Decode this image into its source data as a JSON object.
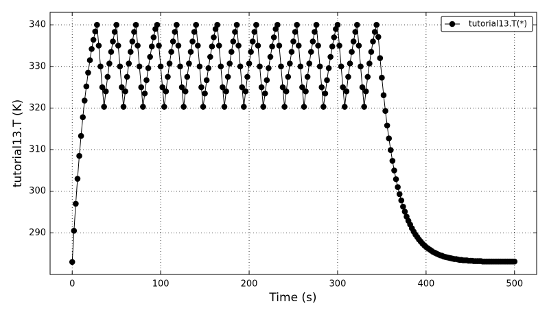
{
  "chart_data": {
    "type": "line",
    "xlabel": "Time (s)",
    "ylabel": "tutorial13.T (K)",
    "xlim": [
      -25,
      525
    ],
    "ylim": [
      280,
      343
    ],
    "xticks": [
      0,
      100,
      200,
      300,
      400,
      500
    ],
    "yticks": [
      290,
      300,
      310,
      320,
      330,
      340
    ],
    "grid": true,
    "legend": "upper right",
    "x": [
      0,
      2,
      4,
      6,
      8,
      10,
      12,
      14,
      16,
      18,
      20,
      22,
      24,
      26,
      28,
      30,
      32,
      34,
      36,
      38,
      40,
      42,
      44,
      46,
      48,
      50,
      52,
      54,
      56,
      58,
      60,
      62,
      64,
      66,
      68,
      70,
      72,
      74,
      76,
      78,
      80,
      82,
      84,
      86,
      88,
      90,
      92,
      94,
      96,
      98,
      100,
      102,
      104,
      106,
      108,
      110,
      112,
      114,
      116,
      118,
      120,
      122,
      124,
      126,
      128,
      130,
      132,
      134,
      136,
      138,
      140,
      142,
      144,
      146,
      148,
      150,
      152,
      154,
      156,
      158,
      160,
      162,
      164,
      166,
      168,
      170,
      172,
      174,
      176,
      178,
      180,
      182,
      184,
      186,
      188,
      190,
      192,
      194,
      196,
      198,
      200,
      202,
      204,
      206,
      208,
      210,
      212,
      214,
      216,
      218,
      220,
      222,
      224,
      226,
      228,
      230,
      232,
      234,
      236,
      238,
      240,
      242,
      244,
      246,
      248,
      250,
      252,
      254,
      256,
      258,
      260,
      262,
      264,
      266,
      268,
      270,
      272,
      274,
      276,
      278,
      280,
      282,
      284,
      286,
      288,
      290,
      292,
      294,
      296,
      298,
      300,
      302,
      304,
      306,
      308,
      310,
      312,
      314,
      316,
      318,
      320,
      322,
      324,
      326,
      328,
      330,
      332,
      334,
      336,
      338,
      340,
      342,
      344,
      346,
      348,
      350,
      352,
      354,
      356,
      358,
      360,
      362,
      364,
      366,
      368,
      370,
      372,
      374,
      376,
      378,
      380,
      382,
      384,
      386,
      388,
      390,
      392,
      394,
      396,
      398,
      400,
      402,
      404,
      406,
      408,
      410,
      412,
      414,
      416,
      418,
      420,
      422,
      424,
      426,
      428,
      430,
      432,
      434,
      436,
      438,
      440,
      442,
      444,
      446,
      448,
      450,
      452,
      454,
      456,
      458,
      460,
      462,
      464,
      466,
      468,
      470,
      472,
      474,
      476,
      478,
      480,
      482,
      484,
      486,
      488,
      490,
      492,
      494,
      496,
      498,
      500
    ],
    "series": [
      {
        "name": "tutorial13.T(*)",
        "color": "#000000",
        "values": [
          283,
          290.5,
          297,
          303,
          308.5,
          313.3,
          317.8,
          321.8,
          325.2,
          328.5,
          331.5,
          334.2,
          336.4,
          338.4,
          340,
          335,
          330,
          325,
          320.3,
          324,
          327.5,
          330.7,
          333.5,
          336,
          338.3,
          340,
          335,
          330,
          325,
          320.3,
          324,
          327.5,
          330.7,
          333.5,
          336,
          338.3,
          340,
          335,
          330,
          325,
          320.3,
          323.5,
          326.7,
          329.6,
          332.3,
          334.8,
          337,
          339,
          340,
          335,
          330,
          325,
          320.3,
          324,
          327.5,
          330.7,
          333.5,
          336,
          338.3,
          340,
          335,
          330,
          325,
          320.3,
          324,
          327.5,
          330.7,
          333.5,
          336,
          338.3,
          340,
          335,
          330,
          325,
          320.3,
          323.5,
          326.7,
          329.6,
          332.3,
          334.8,
          337,
          339,
          340,
          335,
          330,
          325,
          320.3,
          324,
          327.5,
          330.7,
          333.5,
          336,
          338.3,
          340,
          335,
          330,
          325,
          320.3,
          324,
          327.5,
          330.7,
          333.5,
          336,
          338.3,
          340,
          335,
          330,
          325,
          320.3,
          323.5,
          326.7,
          329.6,
          332.3,
          334.8,
          337,
          339,
          340,
          335,
          330,
          325,
          320.3,
          324,
          327.5,
          330.7,
          333.5,
          336,
          338.3,
          340,
          335,
          330,
          325,
          320.3,
          324,
          327.5,
          330.7,
          333.5,
          336,
          338.3,
          340,
          335,
          330,
          325,
          320.3,
          323.5,
          326.7,
          329.6,
          332.3,
          334.8,
          337,
          339,
          340,
          335,
          330,
          325,
          320.3,
          324,
          327.5,
          330.7,
          333.5,
          336,
          338.3,
          340,
          335,
          330,
          325,
          320.3,
          324,
          327.5,
          330.7,
          333.5,
          336,
          338.3,
          340,
          337.1,
          332,
          327.3,
          323.1,
          319.3,
          315.8,
          312.7,
          309.9,
          307.3,
          305,
          302.9,
          301,
          299.3,
          297.8,
          296.3,
          295.1,
          293.9,
          292.9,
          292,
          291.1,
          290.3,
          289.6,
          289,
          288.4,
          287.9,
          287.4,
          287,
          286.6,
          286.3,
          286,
          285.7,
          285.4,
          285.2,
          285,
          284.8,
          284.6,
          284.5,
          284.3,
          284.2,
          284.1,
          284,
          283.9,
          283.8,
          283.7,
          283.7,
          283.6,
          283.5,
          283.5,
          283.4,
          283.4,
          283.4,
          283.3,
          283.3,
          283.3,
          283.2,
          283.2,
          283.2,
          283.2,
          283.2,
          283.1,
          283.1,
          283.1,
          283.1,
          283.1,
          283.1,
          283.1,
          283.1,
          283.1,
          283.1,
          283.1,
          283.1,
          283.1,
          283.1,
          283.1,
          283.1,
          283.1,
          283.1,
          283.1
        ]
      }
    ]
  }
}
